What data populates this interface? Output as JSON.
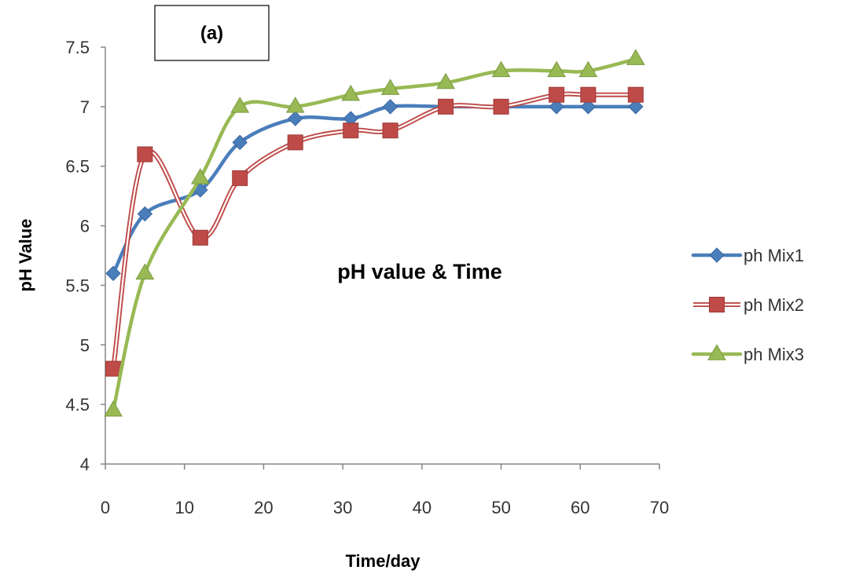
{
  "chart_data": {
    "type": "line",
    "panel_label": "(a)",
    "annotation": "pH value & Time",
    "xlabel": "Time/day",
    "ylabel": "pH Value",
    "xlim": [
      0,
      70
    ],
    "ylim": [
      4,
      7.5
    ],
    "xticks": [
      0,
      10,
      20,
      30,
      40,
      50,
      60,
      70
    ],
    "yticks": [
      4,
      4.5,
      5,
      5.5,
      6,
      6.5,
      7,
      7.5
    ],
    "ytick_labels": [
      "4",
      "4.5",
      "5",
      "5.5",
      "6",
      "6.5",
      "7",
      "7.5"
    ],
    "grid": false,
    "legend_position": "right",
    "smooth": true,
    "series": [
      {
        "name": "ph Mix1",
        "color": "#4a7ebb",
        "marker": "diamond",
        "line_style": "solid",
        "x": [
          1,
          5,
          12,
          17,
          24,
          31,
          36,
          43,
          50,
          57,
          61,
          67
        ],
        "y": [
          5.6,
          6.1,
          6.3,
          6.7,
          6.9,
          6.9,
          7.0,
          7.0,
          7.0,
          7.0,
          7.0,
          7.0
        ]
      },
      {
        "name": "ph Mix2",
        "color": "#be4b48",
        "marker": "square",
        "line_style": "double",
        "x": [
          1,
          5,
          12,
          17,
          24,
          31,
          36,
          43,
          50,
          57,
          61,
          67
        ],
        "y": [
          4.8,
          6.6,
          5.9,
          6.4,
          6.7,
          6.8,
          6.8,
          7.0,
          7.0,
          7.1,
          7.1,
          7.1
        ]
      },
      {
        "name": "ph Mix3",
        "color": "#98b954",
        "marker": "triangle",
        "line_style": "solid",
        "x": [
          1,
          5,
          12,
          17,
          24,
          31,
          36,
          43,
          50,
          57,
          61,
          67
        ],
        "y": [
          4.45,
          5.6,
          6.4,
          7.0,
          7.0,
          7.1,
          7.15,
          7.2,
          7.3,
          7.3,
          7.3,
          7.4
        ]
      }
    ]
  }
}
